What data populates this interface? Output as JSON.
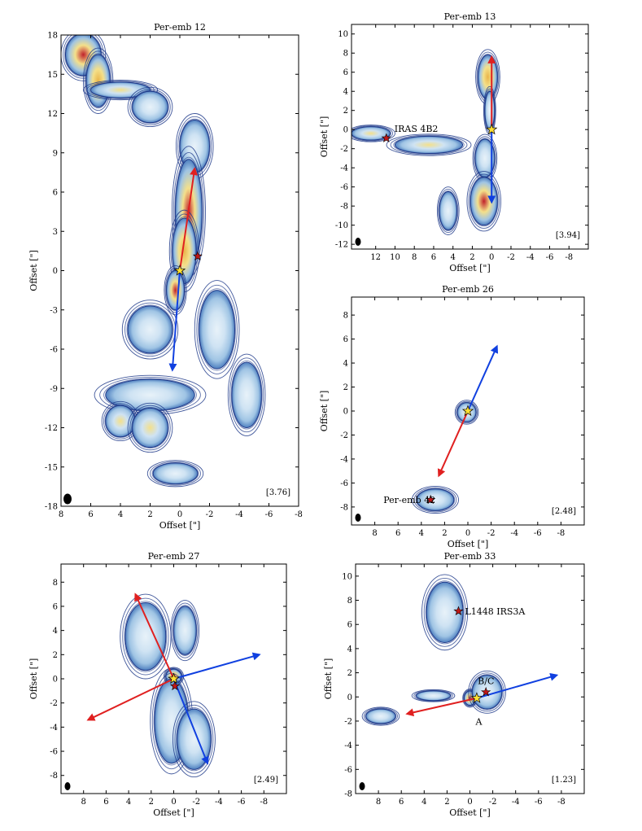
{
  "figure": {
    "colors": {
      "contour": "#1f3a8a",
      "fill_low": "#9fc4e4",
      "fill_high": "#f4e08a",
      "peak": "#c0202a",
      "redshift": "#e02020",
      "blueshift": "#1040e0",
      "star_yellow": "#ffe033",
      "star_red": "#c01818",
      "beam": "#000000"
    }
  },
  "chart_data": [
    {
      "type": "contour",
      "title": "Per-emb 12",
      "xlabel": "Offset [\"]",
      "ylabel": "Offset [\"]",
      "xlim": [
        8,
        -8
      ],
      "ylim": [
        -18,
        18
      ],
      "xticks": [
        8,
        6,
        4,
        2,
        0,
        -2,
        -4,
        -6,
        -8
      ],
      "yticks": [
        -18,
        -15,
        -12,
        -9,
        -6,
        -3,
        0,
        3,
        6,
        9,
        12,
        15,
        18
      ],
      "annotation": "[3.76]",
      "source_star": {
        "x": 0,
        "y": 0
      },
      "secondary_stars": [
        {
          "x": -1.2,
          "y": 1.1,
          "label": ""
        }
      ],
      "outflow_arrows": [
        {
          "color": "red",
          "from": [
            0,
            0
          ],
          "to": [
            -1.0,
            7.8
          ]
        },
        {
          "color": "blue",
          "from": [
            0,
            0
          ],
          "to": [
            0.5,
            -7.6
          ]
        }
      ],
      "emission_blobs": [
        {
          "x": 6.5,
          "y": 16.5,
          "rx": 1.2,
          "ry": 1.6,
          "peak": 1.0
        },
        {
          "x": 5.5,
          "y": 14.5,
          "rx": 0.8,
          "ry": 2.0,
          "peak": 0.6
        },
        {
          "x": 4.0,
          "y": 13.8,
          "rx": 2.0,
          "ry": 0.6,
          "peak": 0.4
        },
        {
          "x": 2.0,
          "y": 12.5,
          "rx": 1.2,
          "ry": 1.2,
          "peak": 0.3
        },
        {
          "x": -1.0,
          "y": 9.5,
          "rx": 1.0,
          "ry": 2.0,
          "peak": 0.3
        },
        {
          "x": -0.6,
          "y": 4.5,
          "rx": 0.9,
          "ry": 4.0,
          "peak": 0.9
        },
        {
          "x": -0.3,
          "y": 1.5,
          "rx": 0.8,
          "ry": 2.5,
          "peak": 0.7
        },
        {
          "x": 0.3,
          "y": -1.5,
          "rx": 0.6,
          "ry": 1.5,
          "peak": 0.9
        },
        {
          "x": 2.0,
          "y": -4.5,
          "rx": 1.5,
          "ry": 1.8,
          "peak": 0.3
        },
        {
          "x": -2.5,
          "y": -4.5,
          "rx": 1.2,
          "ry": 3.0,
          "peak": 0.3
        },
        {
          "x": -4.5,
          "y": -9.5,
          "rx": 1.0,
          "ry": 2.5,
          "peak": 0.3
        },
        {
          "x": 2.0,
          "y": -9.5,
          "rx": 3.0,
          "ry": 1.2,
          "peak": 0.3
        },
        {
          "x": 4.0,
          "y": -11.5,
          "rx": 1.0,
          "ry": 1.2,
          "peak": 0.4
        },
        {
          "x": 2.0,
          "y": -12.0,
          "rx": 1.2,
          "ry": 1.5,
          "peak": 0.5
        },
        {
          "x": 0.3,
          "y": -15.5,
          "rx": 1.5,
          "ry": 0.8,
          "peak": 0.2
        }
      ]
    },
    {
      "type": "contour",
      "title": "Per-emb 13",
      "xlabel": "Offset [\"]",
      "ylabel": "Offset [\"]",
      "xlim": [
        14.5,
        -10
      ],
      "ylim": [
        -12.5,
        11
      ],
      "xticks": [
        12,
        10,
        8,
        6,
        4,
        2,
        0,
        -2,
        -4,
        -6,
        -8
      ],
      "yticks": [
        -12,
        -10,
        -8,
        -6,
        -4,
        -2,
        0,
        2,
        4,
        6,
        8,
        10
      ],
      "annotation": "[3.94]",
      "source_star": {
        "x": 0,
        "y": 0
      },
      "secondary_stars": [
        {
          "x": 10.9,
          "y": -0.9,
          "label": "IRAS 4B2"
        }
      ],
      "outflow_arrows": [
        {
          "color": "red",
          "from": [
            0,
            0
          ],
          "to": [
            0,
            7.6
          ]
        },
        {
          "color": "blue",
          "from": [
            0,
            0
          ],
          "to": [
            0,
            -7.6
          ]
        }
      ],
      "emission_blobs": [
        {
          "x": 0.4,
          "y": 5.5,
          "rx": 1.0,
          "ry": 2.3,
          "peak": 0.7
        },
        {
          "x": 0.2,
          "y": 2.0,
          "rx": 0.5,
          "ry": 2.0,
          "peak": 0.3
        },
        {
          "x": 0.7,
          "y": -3.0,
          "rx": 1.0,
          "ry": 2.0,
          "peak": 0.3
        },
        {
          "x": 0.8,
          "y": -7.5,
          "rx": 1.4,
          "ry": 2.5,
          "peak": 1.0
        },
        {
          "x": 12.5,
          "y": -0.4,
          "rx": 2.0,
          "ry": 0.7,
          "peak": 0.5
        },
        {
          "x": 6.5,
          "y": -1.6,
          "rx": 3.5,
          "ry": 0.9,
          "peak": 0.5
        },
        {
          "x": 4.5,
          "y": -8.5,
          "rx": 0.9,
          "ry": 2.0,
          "peak": 0.1
        }
      ]
    },
    {
      "type": "contour",
      "title": "Per-emb 26",
      "xlabel": "Offset [\"]",
      "ylabel": "Offset [\"]",
      "xlim": [
        10,
        -10
      ],
      "ylim": [
        -9.5,
        9.5
      ],
      "xticks": [
        8,
        6,
        4,
        2,
        0,
        -2,
        -4,
        -6,
        -8
      ],
      "yticks": [
        -8,
        -6,
        -4,
        -2,
        0,
        2,
        4,
        6,
        8
      ],
      "annotation": "[2.48]",
      "source_star": {
        "x": 0,
        "y": 0
      },
      "secondary_stars": [
        {
          "x": 3.2,
          "y": -7.4,
          "label": "Per-emb 42"
        }
      ],
      "outflow_arrows": [
        {
          "color": "blue",
          "from": [
            0,
            0
          ],
          "to": [
            -2.5,
            5.4
          ]
        },
        {
          "color": "red",
          "from": [
            0,
            0
          ],
          "to": [
            2.5,
            -5.4
          ]
        }
      ],
      "emission_blobs": [
        {
          "x": 0.1,
          "y": -0.1,
          "rx": 0.8,
          "ry": 0.8,
          "peak": 0.5
        },
        {
          "x": 2.8,
          "y": -7.4,
          "rx": 1.6,
          "ry": 0.9,
          "peak": 0.15
        }
      ]
    },
    {
      "type": "contour",
      "title": "Per-emb 27",
      "xlabel": "Offset [\"]",
      "ylabel": "Offset [\"]",
      "xlim": [
        10,
        -10
      ],
      "ylim": [
        -9.5,
        9.5
      ],
      "xticks": [
        8,
        6,
        4,
        2,
        0,
        -2,
        -4,
        -6,
        -8
      ],
      "yticks": [
        -8,
        -6,
        -4,
        -2,
        0,
        2,
        4,
        6,
        8
      ],
      "annotation": "[2.49]",
      "source_star": {
        "x": 0,
        "y": 0
      },
      "secondary_stars": [
        {
          "x": -0.1,
          "y": -0.6,
          "label": ""
        }
      ],
      "outflow_arrows": [
        {
          "color": "red",
          "from": [
            0,
            0
          ],
          "to": [
            3.4,
            7.0
          ]
        },
        {
          "color": "blue",
          "from": [
            0,
            0
          ],
          "to": [
            -7.6,
            2.0
          ]
        },
        {
          "color": "red",
          "from": [
            0,
            0
          ],
          "to": [
            7.6,
            -3.4
          ]
        },
        {
          "color": "blue",
          "from": [
            0,
            0
          ],
          "to": [
            -3.0,
            -7.0
          ]
        }
      ],
      "emission_blobs": [
        {
          "x": 2.5,
          "y": 3.5,
          "rx": 1.8,
          "ry": 2.8,
          "peak": 0.2
        },
        {
          "x": 0.0,
          "y": 0.2,
          "rx": 0.7,
          "ry": 0.6,
          "peak": 0.9
        },
        {
          "x": 0.2,
          "y": -3.5,
          "rx": 1.5,
          "ry": 3.5,
          "peak": 0.3
        },
        {
          "x": -1.8,
          "y": -5.0,
          "rx": 1.5,
          "ry": 2.5,
          "peak": 0.2
        },
        {
          "x": -1.0,
          "y": 4.0,
          "rx": 1.0,
          "ry": 2.0,
          "peak": 0.15
        }
      ]
    },
    {
      "type": "contour",
      "title": "Per-emb 33",
      "xlabel": "Offset [\"]",
      "ylabel": "Offset [\"]",
      "xlim": [
        10,
        -10
      ],
      "ylim": [
        -8,
        11
      ],
      "xticks": [
        8,
        6,
        4,
        2,
        0,
        -2,
        -4,
        -6,
        -8
      ],
      "yticks": [
        -8,
        -6,
        -4,
        -2,
        0,
        2,
        4,
        6,
        8,
        10
      ],
      "annotation": "[1.23]",
      "source_star": {
        "x": -0.6,
        "y": -0.1
      },
      "secondary_stars": [
        {
          "x": 1.0,
          "y": 7.1,
          "label": "L1448 IRS3A"
        },
        {
          "x": -1.4,
          "y": 0.4,
          "label": "B/C"
        }
      ],
      "extra_labels": [
        {
          "x": -0.5,
          "y": -1.5,
          "text": "A"
        }
      ],
      "outflow_arrows": [
        {
          "color": "red",
          "from": [
            -0.6,
            -0.1
          ],
          "to": [
            5.5,
            -1.4
          ]
        },
        {
          "color": "blue",
          "from": [
            -0.6,
            -0.1
          ],
          "to": [
            -7.6,
            1.8
          ]
        }
      ],
      "emission_blobs": [
        {
          "x": 2.2,
          "y": 7.0,
          "rx": 1.6,
          "ry": 2.5,
          "peak": 0.2
        },
        {
          "x": 0.0,
          "y": -0.1,
          "rx": 0.5,
          "ry": 0.6,
          "peak": 1.0
        },
        {
          "x": -1.5,
          "y": 0.4,
          "rx": 1.3,
          "ry": 1.4,
          "peak": 0.15
        },
        {
          "x": 3.2,
          "y": 0.1,
          "rx": 1.5,
          "ry": 0.4,
          "peak": 0.3
        },
        {
          "x": 7.8,
          "y": -1.6,
          "rx": 1.3,
          "ry": 0.6,
          "peak": 0.2
        }
      ]
    }
  ]
}
